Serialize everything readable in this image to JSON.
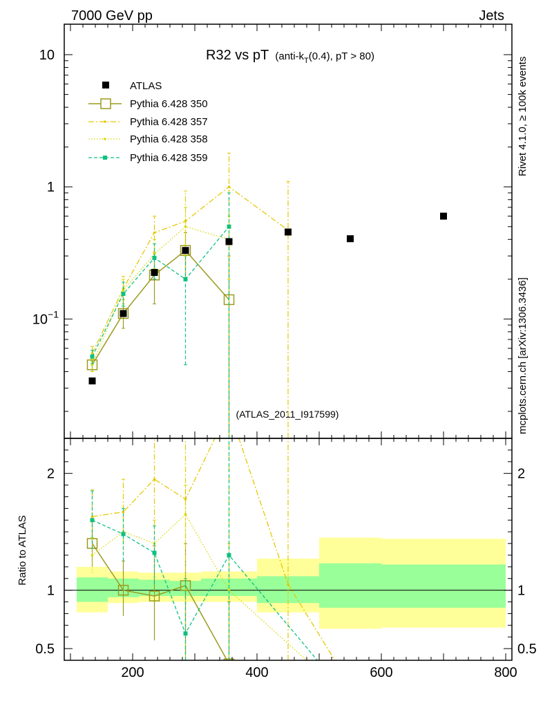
{
  "header": {
    "left_label": "7000 GeV pp",
    "right_label": "Jets",
    "title_main": "R32 vs pT",
    "title_sub_a": "(anti-k",
    "title_sub_t": "T",
    "title_sub_b": "(0.4), pT > 80)",
    "side_top": "Rivet 4.1.0, ≥ 100k events",
    "side_bottom": "mcplots.cern.ch [arXiv:1306.3436]",
    "analysis_id": "(ATLAS_2011_I917599)"
  },
  "colors": {
    "data": "#000000",
    "p350": "#9a9a1e",
    "p357": "#e6c800",
    "p358": "#d8d800",
    "p359": "#10c080",
    "band_inner": "#99ff99",
    "band_outer": "#ffff99",
    "analysis_id": "#999999"
  },
  "chart_data": {
    "type": "line",
    "x_range": [
      90,
      810
    ],
    "main": {
      "scale": "log",
      "ylim": [
        0.0125,
        17
      ],
      "yticks": [
        {
          "v": 0.1,
          "label": "10−1"
        },
        {
          "v": 1,
          "label": "1"
        },
        {
          "v": 10,
          "label": "10"
        }
      ]
    },
    "ratio": {
      "ylabel": "Ratio to ATLAS",
      "ylim": [
        0.4,
        2.3
      ],
      "yticks": [
        {
          "v": 0.5,
          "label": "0.5"
        },
        {
          "v": 1,
          "label": "1"
        },
        {
          "v": 2,
          "label": "2"
        }
      ]
    },
    "xticks": [
      200,
      400,
      600,
      800
    ],
    "bins": [
      {
        "lo": 110,
        "hi": 160,
        "inner": [
          0.9,
          1.11
        ],
        "outer": [
          0.81,
          1.2
        ]
      },
      {
        "lo": 160,
        "hi": 210,
        "inner": [
          0.94,
          1.1
        ],
        "outer": [
          0.89,
          1.16
        ]
      },
      {
        "lo": 210,
        "hi": 260,
        "inner": [
          0.95,
          1.09
        ],
        "outer": [
          0.9,
          1.15
        ]
      },
      {
        "lo": 260,
        "hi": 310,
        "inner": [
          0.95,
          1.08
        ],
        "outer": [
          0.9,
          1.15
        ]
      },
      {
        "lo": 310,
        "hi": 400,
        "inner": [
          0.95,
          1.1
        ],
        "outer": [
          0.9,
          1.16
        ]
      },
      {
        "lo": 400,
        "hi": 500,
        "inner": [
          0.89,
          1.12
        ],
        "outer": [
          0.81,
          1.27
        ]
      },
      {
        "lo": 500,
        "hi": 600,
        "inner": [
          0.85,
          1.23
        ],
        "outer": [
          0.67,
          1.45
        ]
      },
      {
        "lo": 600,
        "hi": 800,
        "inner": [
          0.85,
          1.22
        ],
        "outer": [
          0.68,
          1.44
        ]
      }
    ],
    "series": [
      {
        "name": "ATLAS",
        "key": "data",
        "line": "none",
        "marker": "filled-square",
        "x": [
          135,
          185,
          235,
          285,
          355,
          450,
          550,
          700
        ],
        "y": [
          0.034,
          0.11,
          0.225,
          0.33,
          0.385,
          0.455,
          0.405,
          0.6
        ],
        "ratio": [
          1,
          1,
          1,
          1,
          1,
          1,
          1,
          1
        ]
      },
      {
        "name": "Pythia 6.428 350",
        "key": "p350",
        "line": "solid",
        "marker": "open-square",
        "x": [
          135,
          185,
          235,
          285,
          355
        ],
        "y": [
          0.045,
          0.11,
          0.215,
          0.33,
          0.14
        ],
        "err": [
          [
            0.04,
            0.05
          ],
          [
            0.085,
            0.14
          ],
          [
            0.13,
            0.32
          ],
          [
            0.2,
            0.45
          ],
          [
            0.0001,
            0.3
          ]
        ],
        "ratio": [
          1.4,
          1.0,
          0.95,
          1.04,
          0.37
        ],
        "ratio_err": [
          [
            1.2,
            1.6
          ],
          [
            0.78,
            1.25
          ],
          [
            0.57,
            1.38
          ],
          [
            0.05,
            1.4
          ],
          [
            0.05,
            0.9
          ]
        ]
      },
      {
        "name": "Pythia 6.428 357",
        "key": "p357",
        "line": "dashdot",
        "marker": "small-dot",
        "x": [
          135,
          185,
          235,
          285,
          355,
          450
        ],
        "y": [
          0.055,
          0.17,
          0.45,
          0.55,
          1.0,
          0.47
        ],
        "err": [
          [
            0.048,
            0.062
          ],
          [
            0.14,
            0.21
          ],
          [
            0.32,
            0.6
          ],
          [
            0.2,
            0.93
          ],
          [
            0.0001,
            1.8
          ],
          [
            0.0001,
            1.1
          ]
        ],
        "ratio": [
          1.63,
          1.67,
          1.95,
          1.78,
          2.55,
          1.05,
          0.1
        ],
        "ratio_x": [
          135,
          185,
          235,
          285,
          355,
          450,
          560
        ],
        "ratio_err": [
          [
            1.4,
            1.86
          ],
          [
            1.4,
            1.95
          ],
          [
            1.55,
            2.35
          ],
          [
            0.05,
            2.4
          ],
          [
            0.05,
            2.4
          ],
          [
            0.05,
            2.4
          ],
          null
        ]
      },
      {
        "name": "Pythia 6.428 358",
        "key": "p358",
        "line": "dotted",
        "marker": "small-dot",
        "x": [
          135,
          185,
          235,
          285,
          355
        ],
        "y": [
          0.045,
          0.165,
          0.31,
          0.5,
          0.4
        ],
        "err": [
          [
            0.04,
            0.05
          ],
          [
            0.13,
            0.2
          ],
          [
            0.24,
            0.4
          ],
          [
            0.3,
            0.7
          ],
          [
            0.2,
            0.6
          ]
        ],
        "ratio": [
          1.3,
          1.5,
          1.4,
          1.65,
          1.0,
          0.35
        ],
        "ratio_x": [
          135,
          185,
          235,
          285,
          355,
          490
        ],
        "ratio_err": [
          [
            1.15,
            1.45
          ],
          [
            1.3,
            1.7
          ],
          [
            1.2,
            1.6
          ],
          [
            1.4,
            1.9
          ],
          [
            0.6,
            1.4
          ],
          null
        ]
      },
      {
        "name": "Pythia 6.428 359",
        "key": "p359",
        "line": "dashed",
        "marker": "small-square",
        "x": [
          135,
          185,
          235,
          285,
          355
        ],
        "y": [
          0.052,
          0.155,
          0.29,
          0.2,
          0.5
        ],
        "err": [
          [
            0.046,
            0.058
          ],
          [
            0.125,
            0.19
          ],
          [
            0.2,
            0.37
          ],
          [
            0.045,
            0.33
          ],
          [
            0.0001,
            0.9
          ]
        ],
        "ratio": [
          1.6,
          1.48,
          1.32,
          0.63,
          1.3,
          0.35
        ],
        "ratio_x": [
          135,
          185,
          235,
          285,
          355,
          505
        ],
        "ratio_err": [
          [
            1.35,
            1.85
          ],
          [
            1.25,
            1.7
          ],
          [
            1.05,
            1.55
          ],
          [
            0.05,
            1.1
          ],
          [
            0.05,
            2.3
          ],
          null
        ]
      }
    ]
  }
}
